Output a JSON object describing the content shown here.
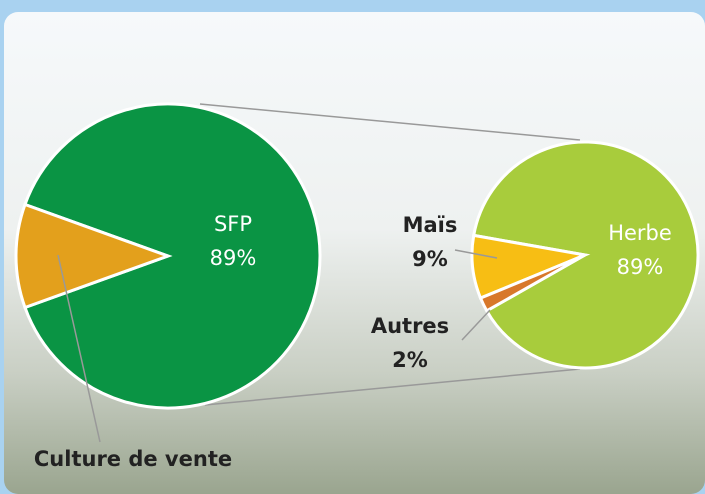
{
  "chart_data": [
    {
      "type": "pie",
      "categories": [
        "SFP",
        "Culture de vente"
      ],
      "values": [
        89,
        11
      ],
      "value_labels": [
        "89%",
        null
      ],
      "colors": [
        "#0a9444",
        "#e3a01c"
      ]
    },
    {
      "type": "pie",
      "categories": [
        "Herbe",
        "Maïs",
        "Autres"
      ],
      "values": [
        89,
        9,
        2
      ],
      "value_labels": [
        "89%",
        "9%",
        "2%"
      ],
      "colors": [
        "#a8cc3c",
        "#f7be14",
        "#d8782a"
      ]
    }
  ]
}
